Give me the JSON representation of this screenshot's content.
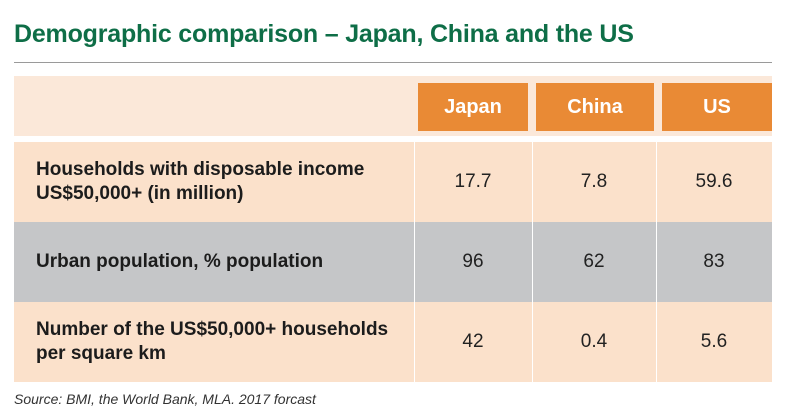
{
  "title": "Demographic comparison – Japan, China and the US",
  "table": {
    "columns": [
      "Japan",
      "China",
      "US"
    ],
    "rows": [
      {
        "label": "Households with disposable income US$50,000+ (in million)",
        "values": [
          "17.7",
          "7.8",
          "59.6"
        ]
      },
      {
        "label": "Urban population, % population",
        "values": [
          "96",
          "62",
          "83"
        ]
      },
      {
        "label": "Number of the US$50,000+ households per square km",
        "values": [
          "42",
          "0.4",
          "5.6"
        ]
      }
    ]
  },
  "source": "Source: BMI, the World Bank, MLA. 2017 forcast",
  "colors": {
    "title": "#0e6e47",
    "header_fill": "#e98a35",
    "header_band": "#fbe8d9",
    "row_peach": "#fbe1cb",
    "row_gray": "#c5c6c8"
  }
}
